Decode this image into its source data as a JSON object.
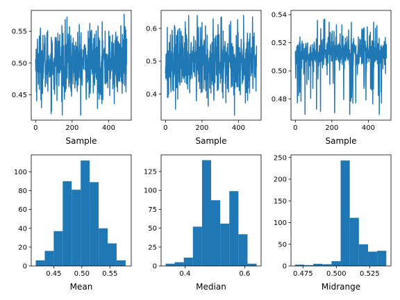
{
  "colors": {
    "series": "#1f77b4",
    "axis": "#000000",
    "background": "#ffffff"
  },
  "chart_data": [
    {
      "type": "line",
      "xlabel": "Sample",
      "ylabel": "",
      "xlim": [
        -24,
        524
      ],
      "ylim": [
        0.41,
        0.583
      ],
      "xticks": [
        0,
        200,
        400
      ],
      "yticks": [
        0.45,
        0.5,
        0.55
      ],
      "ytick_labels": [
        "0.45",
        "0.50",
        "0.55"
      ],
      "grid": false,
      "n_samples": 500,
      "stats": {
        "min": 0.418,
        "max": 0.577,
        "mean": 0.5,
        "spread": 0.028
      }
    },
    {
      "type": "line",
      "xlabel": "Sample",
      "ylabel": "",
      "xlim": [
        -24,
        524
      ],
      "ylim": [
        0.32,
        0.655
      ],
      "xticks": [
        0,
        200,
        400
      ],
      "yticks": [
        0.4,
        0.5,
        0.6
      ],
      "ytick_labels": [
        "0.4",
        "0.5",
        "0.6"
      ],
      "grid": false,
      "n_samples": 500,
      "stats": {
        "min": 0.335,
        "max": 0.64,
        "mean": 0.5,
        "spread": 0.055
      }
    },
    {
      "type": "line",
      "xlabel": "Sample",
      "ylabel": "",
      "xlim": [
        -24,
        524
      ],
      "ylim": [
        0.465,
        0.543
      ],
      "xticks": [
        0,
        200,
        400
      ],
      "yticks": [
        0.48,
        0.5,
        0.52,
        0.54
      ],
      "ytick_labels": [
        "0.48",
        "0.50",
        "0.52",
        "0.54"
      ],
      "grid": false,
      "n_samples": 500,
      "stats": {
        "min": 0.469,
        "max": 0.5375,
        "mean": 0.512,
        "spread": 0.008
      }
    },
    {
      "type": "bar",
      "subtype": "histogram",
      "xlabel": "Mean",
      "ylabel": "",
      "xlim": [
        0.41,
        0.588
      ],
      "ylim": [
        0,
        118
      ],
      "xticks": [
        0.45,
        0.5,
        0.55
      ],
      "xtick_labels": [
        "0.45",
        "0.50",
        "0.55"
      ],
      "yticks": [
        0,
        20,
        40,
        60,
        80,
        100
      ],
      "bin_edges": [
        0.418,
        0.434,
        0.45,
        0.466,
        0.482,
        0.498,
        0.514,
        0.53,
        0.546,
        0.562,
        0.578
      ],
      "values": [
        6,
        16,
        37,
        90,
        81,
        112,
        89,
        40,
        24,
        6
      ],
      "grid": false
    },
    {
      "type": "bar",
      "subtype": "histogram",
      "xlabel": "Median",
      "ylabel": "",
      "xlim": [
        0.32,
        0.655
      ],
      "ylim": [
        0,
        147
      ],
      "xticks": [
        0.4,
        0.6
      ],
      "xtick_labels": [
        "0.4",
        "0.6"
      ],
      "yticks": [
        0,
        25,
        50,
        75,
        100,
        125
      ],
      "bin_edges": [
        0.335,
        0.3655,
        0.396,
        0.4265,
        0.457,
        0.4875,
        0.518,
        0.5485,
        0.579,
        0.6095,
        0.64
      ],
      "values": [
        3,
        5,
        11,
        52,
        140,
        87,
        56,
        99,
        42,
        3
      ],
      "grid": false
    },
    {
      "type": "bar",
      "subtype": "histogram",
      "xlabel": "Midrange",
      "ylabel": "",
      "xlim": [
        0.466,
        0.541
      ],
      "ylim": [
        0,
        256
      ],
      "xticks": [
        0.475,
        0.5,
        0.525
      ],
      "xtick_labels": [
        "0.475",
        "0.500",
        "0.525"
      ],
      "yticks": [
        0,
        50,
        100,
        150,
        200,
        250
      ],
      "bin_edges": [
        0.469,
        0.47585,
        0.4827,
        0.48955,
        0.4964,
        0.50325,
        0.5101,
        0.51695,
        0.5238,
        0.53065,
        0.5375
      ],
      "values": [
        3,
        2,
        5,
        4,
        11,
        243,
        111,
        50,
        33,
        35
      ],
      "grid": false
    }
  ]
}
